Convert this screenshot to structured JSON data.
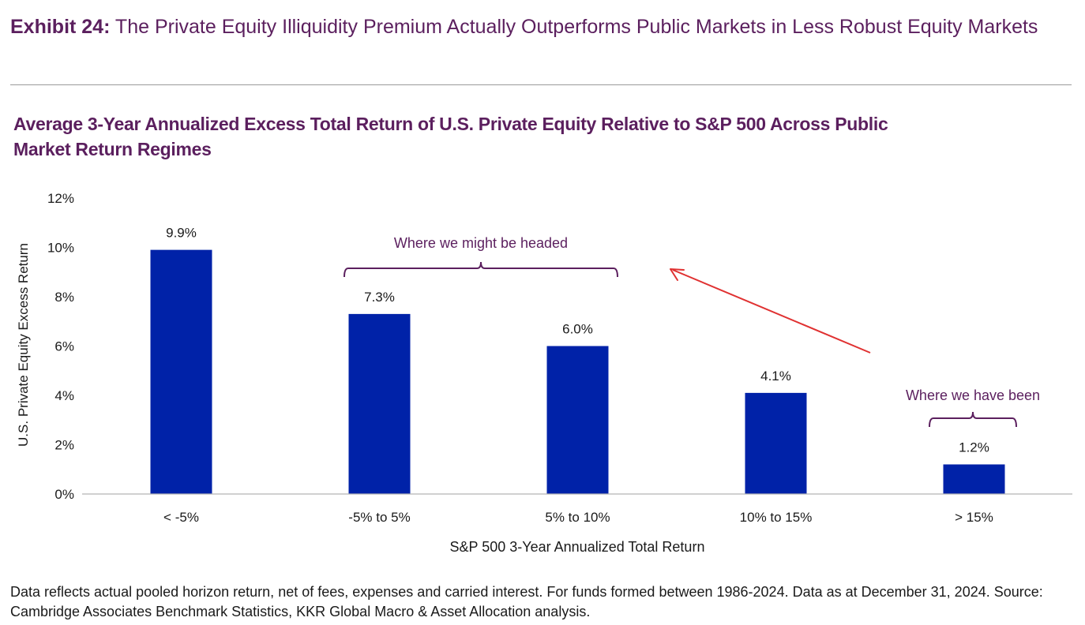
{
  "header": {
    "exhibit_label": "Exhibit 24:",
    "exhibit_title": "The Private Equity Illiquidity Premium Actually Outperforms Public Markets in Less Robust Equity Markets"
  },
  "colors": {
    "bar": "#0022a8",
    "title": "#5b1f5e",
    "annotation": "#5b1f5e",
    "arrow": "#e03131",
    "axis": "#b3b3b3"
  },
  "chart_data": {
    "type": "bar",
    "title": "Average 3-Year Annualized Excess Total Return of U.S. Private Equity Relative to S&P 500 Across Public Market Return Regimes",
    "xlabel": "S&P 500 3-Year Annualized Total Return",
    "ylabel": "U.S. Private Equity Excess Return",
    "categories": [
      "< -5%",
      "-5% to 5%",
      "5% to 10%",
      "10% to 15%",
      "> 15%"
    ],
    "values": [
      9.9,
      7.3,
      6.0,
      4.1,
      1.2
    ],
    "data_labels": [
      "9.9%",
      "7.3%",
      "6.0%",
      "4.1%",
      "1.2%"
    ],
    "ylim": [
      0,
      12
    ],
    "yticks": [
      "0%",
      "2%",
      "4%",
      "6%",
      "8%",
      "10%",
      "12%"
    ],
    "grid": false,
    "legend": "none",
    "annotations": [
      {
        "text": "Where we might be headed",
        "spans_categories": [
          1,
          2
        ]
      },
      {
        "text": "Where we have been",
        "spans_categories": [
          4,
          4
        ]
      }
    ]
  },
  "footnote": "Data reflects actual pooled horizon return, net of fees, expenses and carried interest. For funds formed between 1986-2024. Data as at December 31, 2024. Source: Cambridge Associates Benchmark Statistics, KKR Global Macro & Asset Allocation analysis."
}
